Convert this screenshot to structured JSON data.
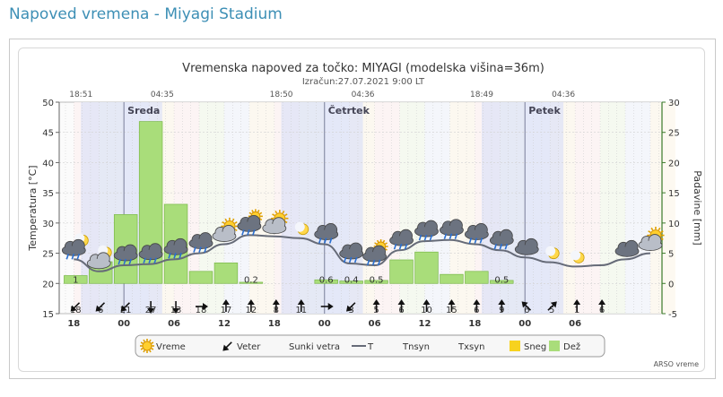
{
  "page": {
    "title": "Napoved vremena - Miyagi Stadium"
  },
  "chart_data": {
    "type": "bar",
    "title": "Vremenska napoved za točko: MIYAGI (modelska višina=36m)",
    "subtitle": "Izračun:27.07.2021 9:00 LT",
    "ylabel": "Temperatura [°C]",
    "y2label": "Padavine [mm]",
    "ylim": [
      15,
      50
    ],
    "y2lim": [
      -5,
      30
    ],
    "yticks": [
      "15",
      "20",
      "25",
      "30",
      "35",
      "40",
      "45",
      "50"
    ],
    "y2ticks": [
      "-5",
      "0",
      "5",
      "10",
      "15",
      "20",
      "25",
      "30"
    ],
    "x_hours": [
      18,
      21,
      24,
      27,
      30,
      33,
      36,
      39,
      42,
      45,
      48,
      51,
      54,
      57,
      60,
      63,
      66,
      69,
      72,
      75,
      78,
      81,
      84,
      87
    ],
    "x_tick_labels": [
      {
        "h": 18,
        "label": "18"
      },
      {
        "h": 24,
        "label": "00"
      },
      {
        "h": 30,
        "label": "06"
      },
      {
        "h": 36,
        "label": "12"
      },
      {
        "h": 42,
        "label": "18"
      },
      {
        "h": 48,
        "label": "00"
      },
      {
        "h": 54,
        "label": "06"
      },
      {
        "h": 60,
        "label": "12"
      },
      {
        "h": 66,
        "label": "18"
      },
      {
        "h": 72,
        "label": "00"
      },
      {
        "h": 78,
        "label": "06"
      }
    ],
    "day_labels": [
      {
        "h": 24,
        "label": "Sreda"
      },
      {
        "h": 48,
        "label": "Četrtek"
      },
      {
        "h": 72,
        "label": "Petek"
      }
    ],
    "sun_times": [
      {
        "h": 18.85,
        "label": "18:51"
      },
      {
        "h": 28.58,
        "label": "04:35"
      },
      {
        "h": 42.83,
        "label": "18:50"
      },
      {
        "h": 52.6,
        "label": "04:36"
      },
      {
        "h": 66.82,
        "label": "18:49"
      },
      {
        "h": 76.6,
        "label": "04:36"
      }
    ],
    "series": [
      {
        "name": "Dež",
        "values": [
          1.3,
          3.6,
          11.4,
          26.8,
          13.1,
          2.0,
          3.4,
          0.2,
          0,
          0,
          0.6,
          0.4,
          0.5,
          3.9,
          5.2,
          1.5,
          2.0,
          0.5,
          0,
          0,
          0,
          0,
          0,
          0
        ]
      },
      {
        "name": "T",
        "values": [
          24.0,
          22.0,
          23.0,
          23.2,
          24.0,
          25.0,
          26.5,
          28.0,
          27.8,
          27.5,
          26.5,
          23.3,
          23.0,
          25.5,
          27.0,
          27.2,
          26.5,
          25.5,
          24.3,
          23.5,
          22.8,
          23.0,
          24.0,
          25.0
        ]
      }
    ],
    "precip_labels": [
      "1",
      "",
      "",
      "",
      "",
      "",
      "",
      "0.2",
      "",
      "",
      "0.6",
      "0.4",
      "0.5",
      "",
      "",
      "",
      "",
      "0.5",
      "",
      "",
      "",
      "",
      "",
      ""
    ],
    "wind_speeds": [
      "18",
      "6",
      "21",
      "27",
      "13",
      "18",
      "17",
      "12",
      "8",
      "11",
      "",
      "3",
      "5",
      "6",
      "10",
      "15",
      "6",
      "9",
      "6",
      "5",
      "1",
      "6",
      "",
      ""
    ],
    "wind_dirs_deg": [
      225,
      225,
      225,
      180,
      180,
      90,
      0,
      0,
      0,
      0,
      90,
      225,
      0,
      0,
      0,
      0,
      0,
      0,
      315,
      45,
      0,
      0,
      0,
      0
    ],
    "weather_icons": [
      "rain-night",
      "partly-cloudy-night",
      "rain-cloud",
      "rain-cloud",
      "rain-cloud",
      "rain-cloud",
      "partly-cloudy",
      "partly-cloudy-rain",
      "partly-cloudy",
      "moon",
      "rain-cloud",
      "rain-cloud",
      "partly-cloudy-rain",
      "rain-cloud",
      "rain-cloud",
      "rain-cloud",
      "rain-cloud",
      "rain-cloud",
      "cloudy",
      "moon",
      "moon",
      "",
      "cloudy",
      "partly-cloudy"
    ],
    "legend": [
      {
        "icon": "sun-icon",
        "label": "Vreme"
      },
      {
        "icon": "wind-arrow-icon",
        "label": "Veter"
      },
      {
        "icon": "none",
        "label": "Sunki vetra"
      },
      {
        "icon": "line",
        "label": "T"
      },
      {
        "icon": "none",
        "label": "Tnsyn"
      },
      {
        "icon": "none",
        "label": "Txsyn"
      },
      {
        "icon": "yellow-box",
        "label": "Sneg"
      },
      {
        "icon": "green-box",
        "label": "Dež"
      }
    ],
    "credit": "ARSO vreme",
    "legend_placement": "bottom",
    "grid": true
  }
}
